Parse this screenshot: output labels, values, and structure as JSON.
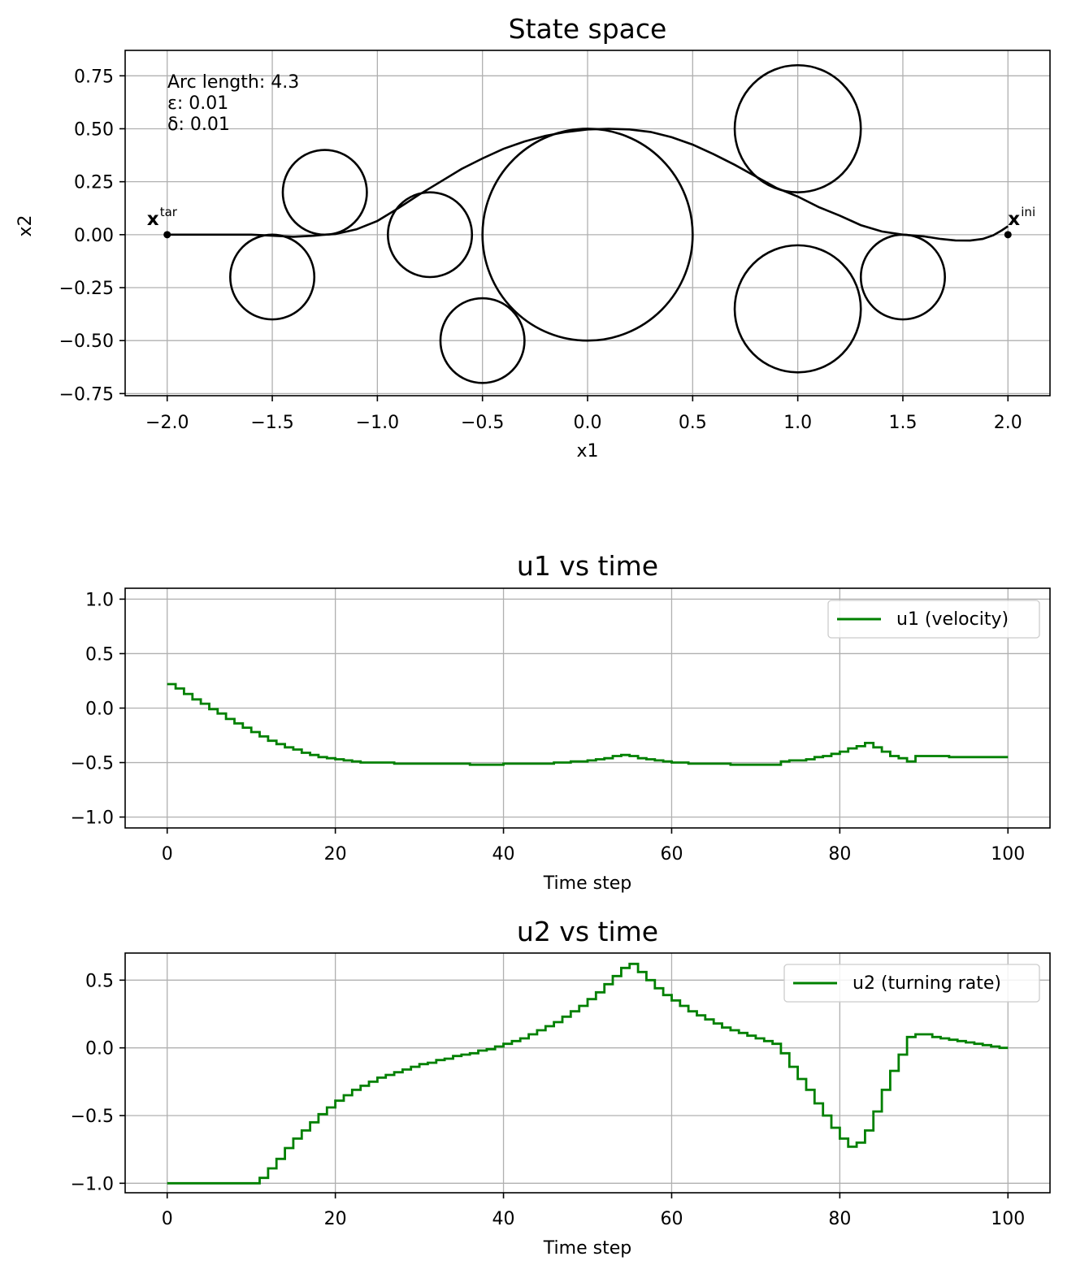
{
  "chart_data": [
    {
      "type": "scatter",
      "title": "State space",
      "xlabel": "x1",
      "ylabel": "x2",
      "xlim": [
        -2.2,
        2.2
      ],
      "ylim": [
        -0.76,
        0.87
      ],
      "xticks": [
        -2.0,
        -1.5,
        -1.0,
        -0.5,
        0.0,
        0.5,
        1.0,
        1.5,
        2.0
      ],
      "xtick_labels": [
        "−2.0",
        "−1.5",
        "−1.0",
        "−0.5",
        "0.0",
        "0.5",
        "1.0",
        "1.5",
        "2.0"
      ],
      "yticks": [
        0.75,
        0.5,
        0.25,
        0.0,
        -0.25,
        -0.5,
        -0.75
      ],
      "ytick_labels": [
        "0.75",
        "0.50",
        "0.25",
        "0.00",
        "−0.25",
        "−0.50",
        "−0.75"
      ],
      "grid": true,
      "annotation_lines": [
        "Arc length: 4.3",
        "ε: 0.01",
        "δ: 0.01"
      ],
      "obstacles": [
        {
          "cx": -1.5,
          "cy": -0.2,
          "r": 0.2
        },
        {
          "cx": -1.25,
          "cy": 0.2,
          "r": 0.2
        },
        {
          "cx": -0.75,
          "cy": 0.0,
          "r": 0.2
        },
        {
          "cx": -0.5,
          "cy": -0.5,
          "r": 0.2
        },
        {
          "cx": 0.0,
          "cy": 0.0,
          "r": 0.5
        },
        {
          "cx": 1.0,
          "cy": 0.5,
          "r": 0.3
        },
        {
          "cx": 1.0,
          "cy": -0.35,
          "r": 0.3
        },
        {
          "cx": 1.5,
          "cy": -0.2,
          "r": 0.2
        }
      ],
      "path": {
        "x": [
          2.0,
          1.97,
          1.93,
          1.88,
          1.82,
          1.75,
          1.68,
          1.6,
          1.5,
          1.4,
          1.3,
          1.2,
          1.1,
          1.0,
          0.9,
          0.8,
          0.7,
          0.6,
          0.5,
          0.4,
          0.3,
          0.2,
          0.1,
          0.0,
          -0.1,
          -0.2,
          -0.3,
          -0.4,
          -0.5,
          -0.6,
          -0.7,
          -0.8,
          -0.9,
          -1.0,
          -1.1,
          -1.2,
          -1.25,
          -1.3,
          -1.4,
          -1.5,
          -1.6,
          -1.7,
          -1.8,
          -1.9,
          -2.0
        ],
        "y": [
          0.04,
          0.02,
          -0.003,
          -0.02,
          -0.028,
          -0.027,
          -0.02,
          -0.008,
          0.0,
          0.015,
          0.045,
          0.09,
          0.13,
          0.18,
          0.22,
          0.275,
          0.33,
          0.38,
          0.425,
          0.46,
          0.485,
          0.497,
          0.5,
          0.497,
          0.485,
          0.467,
          0.44,
          0.405,
          0.36,
          0.31,
          0.25,
          0.19,
          0.125,
          0.065,
          0.025,
          0.003,
          0.0,
          -0.005,
          -0.01,
          -0.005,
          0.0,
          0.0,
          0.0,
          0.0,
          0.0
        ]
      },
      "points": [
        {
          "x": -2.0,
          "y": 0.0,
          "label_main": "x",
          "label_sup": "tar"
        },
        {
          "x": 2.0,
          "y": 0.0,
          "label_main": "x",
          "label_sup": "ini"
        }
      ]
    },
    {
      "type": "line",
      "title": "u1 vs time",
      "xlabel": "Time step",
      "ylabel": "",
      "xlim": [
        -5,
        105
      ],
      "ylim": [
        -1.1,
        1.1
      ],
      "xticks": [
        0,
        20,
        40,
        60,
        80,
        100
      ],
      "xtick_labels": [
        "0",
        "20",
        "40",
        "60",
        "80",
        "100"
      ],
      "yticks": [
        1.0,
        0.5,
        0.0,
        -0.5,
        -1.0
      ],
      "ytick_labels": [
        "1.0",
        "0.5",
        "0.0",
        "−0.5",
        "−1.0"
      ],
      "grid": true,
      "legend_position": "top-right",
      "series": [
        {
          "name": "u1 (velocity)",
          "color": "#008000",
          "step": true,
          "x": [
            0,
            1,
            2,
            3,
            4,
            5,
            6,
            7,
            8,
            9,
            10,
            11,
            12,
            13,
            14,
            15,
            16,
            17,
            18,
            19,
            20,
            21,
            22,
            23,
            24,
            25,
            26,
            27,
            28,
            29,
            30,
            31,
            32,
            33,
            34,
            35,
            36,
            37,
            38,
            39,
            40,
            41,
            42,
            43,
            44,
            45,
            46,
            47,
            48,
            49,
            50,
            51,
            52,
            53,
            54,
            55,
            56,
            57,
            58,
            59,
            60,
            61,
            62,
            63,
            64,
            65,
            66,
            67,
            68,
            69,
            70,
            71,
            72,
            73,
            74,
            75,
            76,
            77,
            78,
            79,
            80,
            81,
            82,
            83,
            84,
            85,
            86,
            87,
            88,
            89,
            90,
            91,
            92,
            93,
            94,
            95,
            96,
            97,
            98,
            99,
            100
          ],
          "values": [
            0.22,
            0.18,
            0.13,
            0.08,
            0.04,
            -0.01,
            -0.05,
            -0.1,
            -0.14,
            -0.18,
            -0.22,
            -0.26,
            -0.3,
            -0.33,
            -0.36,
            -0.38,
            -0.41,
            -0.43,
            -0.45,
            -0.46,
            -0.47,
            -0.48,
            -0.49,
            -0.5,
            -0.5,
            -0.5,
            -0.5,
            -0.51,
            -0.51,
            -0.51,
            -0.51,
            -0.51,
            -0.51,
            -0.51,
            -0.51,
            -0.51,
            -0.52,
            -0.52,
            -0.52,
            -0.52,
            -0.51,
            -0.51,
            -0.51,
            -0.51,
            -0.51,
            -0.51,
            -0.5,
            -0.5,
            -0.49,
            -0.49,
            -0.48,
            -0.47,
            -0.46,
            -0.44,
            -0.43,
            -0.44,
            -0.46,
            -0.47,
            -0.48,
            -0.49,
            -0.5,
            -0.5,
            -0.51,
            -0.51,
            -0.51,
            -0.51,
            -0.51,
            -0.52,
            -0.52,
            -0.52,
            -0.52,
            -0.52,
            -0.52,
            -0.49,
            -0.48,
            -0.48,
            -0.47,
            -0.45,
            -0.44,
            -0.42,
            -0.4,
            -0.37,
            -0.35,
            -0.32,
            -0.36,
            -0.4,
            -0.44,
            -0.46,
            -0.49,
            -0.44,
            -0.44,
            -0.44,
            -0.44,
            -0.45,
            -0.45,
            -0.45,
            -0.45,
            -0.45,
            -0.45,
            -0.45,
            -0.45
          ]
        }
      ]
    },
    {
      "type": "line",
      "title": "u2 vs time",
      "xlabel": "Time step",
      "ylabel": "",
      "xlim": [
        -5,
        105
      ],
      "ylim": [
        -1.07,
        0.7
      ],
      "xticks": [
        0,
        20,
        40,
        60,
        80,
        100
      ],
      "xtick_labels": [
        "0",
        "20",
        "40",
        "60",
        "80",
        "100"
      ],
      "yticks": [
        0.5,
        0.0,
        -0.5,
        -1.0
      ],
      "ytick_labels": [
        "0.5",
        "0.0",
        "−0.5",
        "−1.0"
      ],
      "grid": true,
      "legend_position": "top-right",
      "series": [
        {
          "name": "u2 (turning rate)",
          "color": "#008000",
          "step": true,
          "x": [
            0,
            1,
            2,
            3,
            4,
            5,
            6,
            7,
            8,
            9,
            10,
            11,
            12,
            13,
            14,
            15,
            16,
            17,
            18,
            19,
            20,
            21,
            22,
            23,
            24,
            25,
            26,
            27,
            28,
            29,
            30,
            31,
            32,
            33,
            34,
            35,
            36,
            37,
            38,
            39,
            40,
            41,
            42,
            43,
            44,
            45,
            46,
            47,
            48,
            49,
            50,
            51,
            52,
            53,
            54,
            55,
            56,
            57,
            58,
            59,
            60,
            61,
            62,
            63,
            64,
            65,
            66,
            67,
            68,
            69,
            70,
            71,
            72,
            73,
            74,
            75,
            76,
            77,
            78,
            79,
            80,
            81,
            82,
            83,
            84,
            85,
            86,
            87,
            88,
            89,
            90,
            91,
            92,
            93,
            94,
            95,
            96,
            97,
            98,
            99,
            100
          ],
          "values": [
            -1.0,
            -1.0,
            -1.0,
            -1.0,
            -1.0,
            -1.0,
            -1.0,
            -1.0,
            -1.0,
            -1.0,
            -1.0,
            -0.96,
            -0.89,
            -0.82,
            -0.74,
            -0.67,
            -0.61,
            -0.55,
            -0.49,
            -0.44,
            -0.39,
            -0.35,
            -0.31,
            -0.28,
            -0.25,
            -0.22,
            -0.2,
            -0.18,
            -0.16,
            -0.14,
            -0.12,
            -0.11,
            -0.09,
            -0.08,
            -0.06,
            -0.05,
            -0.04,
            -0.02,
            -0.01,
            0.01,
            0.03,
            0.05,
            0.07,
            0.1,
            0.13,
            0.16,
            0.19,
            0.23,
            0.27,
            0.31,
            0.36,
            0.41,
            0.47,
            0.53,
            0.59,
            0.62,
            0.56,
            0.5,
            0.44,
            0.39,
            0.35,
            0.31,
            0.27,
            0.24,
            0.21,
            0.18,
            0.15,
            0.13,
            0.11,
            0.09,
            0.07,
            0.05,
            0.03,
            -0.04,
            -0.14,
            -0.23,
            -0.31,
            -0.41,
            -0.5,
            -0.59,
            -0.67,
            -0.73,
            -0.7,
            -0.61,
            -0.47,
            -0.31,
            -0.17,
            -0.05,
            0.08,
            0.1,
            0.1,
            0.08,
            0.07,
            0.06,
            0.05,
            0.04,
            0.03,
            0.02,
            0.01,
            0.0,
            0.0
          ]
        }
      ]
    }
  ]
}
